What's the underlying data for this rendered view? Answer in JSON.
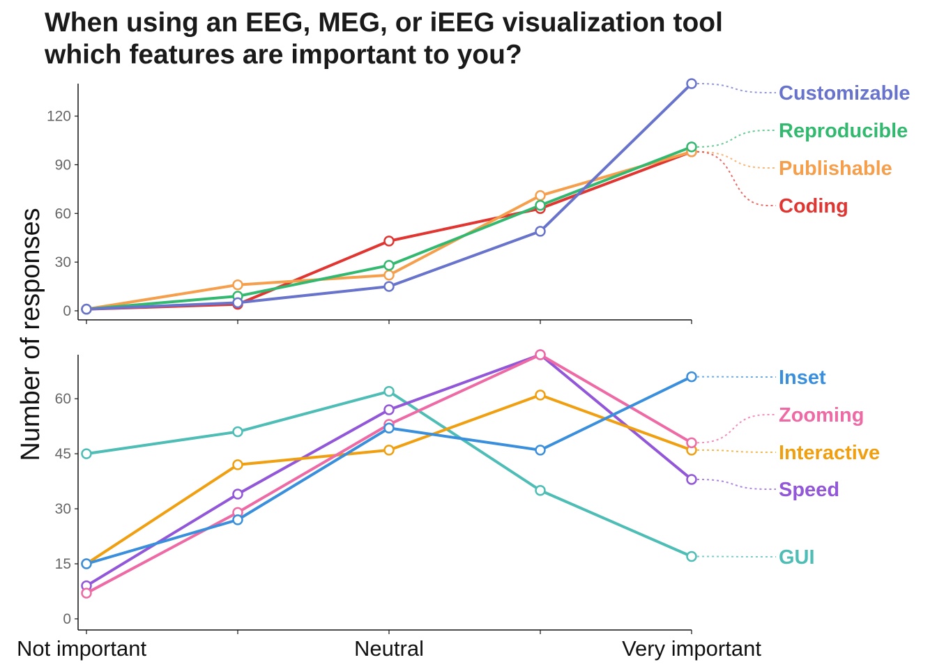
{
  "chart_data": {
    "type": "line",
    "title": "When using an EEG, MEG, or iEEG visualization tool\nwhich features are important to you?",
    "ylabel": "Number of responses",
    "x": [
      1,
      2,
      3,
      4,
      5
    ],
    "x_tick_labels": [
      "Not important",
      "",
      "Neutral",
      "",
      "Very important"
    ],
    "grid": false,
    "legend": "direct labels at right",
    "panels": [
      {
        "id": "top",
        "ylim": [
          0,
          140
        ],
        "yticks": [
          0,
          30,
          60,
          90,
          120
        ],
        "series": [
          {
            "name": "Coding",
            "color": "#e03531",
            "values": [
              1,
              4,
              43,
              63,
              98
            ]
          },
          {
            "name": "Publishable",
            "color": "#f59f4d",
            "values": [
              1,
              16,
              22,
              71,
              98
            ]
          },
          {
            "name": "Reproducible",
            "color": "#33b96f",
            "values": [
              1,
              9,
              28,
              65,
              101
            ]
          },
          {
            "name": "Customizable",
            "color": "#6873cc",
            "values": [
              1,
              5,
              15,
              49,
              140
            ]
          }
        ]
      },
      {
        "id": "bottom",
        "ylim": [
          0,
          72
        ],
        "yticks": [
          0,
          15,
          30,
          45,
          60
        ],
        "series": [
          {
            "name": "GUI",
            "color": "#4dbdb5",
            "values": [
              45,
              51,
              62,
              35,
              17
            ]
          },
          {
            "name": "Speed",
            "color": "#9257d8",
            "values": [
              9,
              34,
              57,
              72,
              38
            ]
          },
          {
            "name": "Interactive",
            "color": "#ef9f10",
            "values": [
              15,
              42,
              46,
              61,
              46
            ]
          },
          {
            "name": "Zooming",
            "color": "#ee6aa5",
            "values": [
              7,
              29,
              53,
              72,
              48
            ]
          },
          {
            "name": "Inset",
            "color": "#3a8fdc",
            "values": [
              15,
              27,
              52,
              46,
              66
            ]
          }
        ]
      }
    ]
  }
}
